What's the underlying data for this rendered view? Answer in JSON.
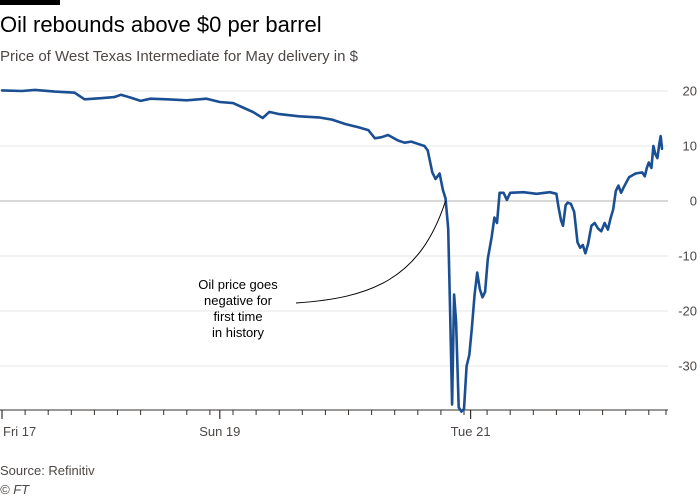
{
  "header": {
    "title": "Oil rebounds above $0 per barrel",
    "subtitle": "Price of West Texas Intermediate for May delivery in $"
  },
  "footer": {
    "source": "Source: Refinitiv",
    "credit": "© FT"
  },
  "colors": {
    "line": "#1b4f93",
    "grid": "#e6e4e2",
    "zero": "#b5b0ac",
    "axis": "#33302e"
  },
  "chart_data": {
    "type": "line",
    "title": "Oil rebounds above $0 per barrel",
    "subtitle": "Price of West Texas Intermediate for May delivery in $",
    "xlabel": "",
    "ylabel": "",
    "xlim": [
      0,
      100
    ],
    "ylim": [
      -38,
      22
    ],
    "y_ticks": [
      20,
      10,
      0,
      -10,
      -20,
      -30
    ],
    "y_tick_labels": [
      "20",
      "10",
      "0",
      "-10",
      "-20",
      "-30"
    ],
    "x_tick_labels": [
      {
        "label": "Fri 17",
        "x": 0
      },
      {
        "label": "Sun 19",
        "x": 33
      },
      {
        "label": "Tue 21",
        "x": 71
      }
    ],
    "x_minor_ticks": [
      3.5,
      7,
      10.5,
      14,
      17.5,
      21,
      24.5,
      28,
      31.5,
      35,
      38.5,
      42,
      45.5,
      49,
      52.5,
      56,
      59.5,
      63,
      66.5,
      70,
      73.5,
      77,
      80.5,
      84,
      87.5,
      91,
      94.5,
      98
    ],
    "series": [
      {
        "name": "WTI May delivery",
        "points": [
          [
            0,
            20.1
          ],
          [
            3,
            20.0
          ],
          [
            5,
            20.2
          ],
          [
            8,
            19.9
          ],
          [
            11,
            19.7
          ],
          [
            12.5,
            18.5
          ],
          [
            15,
            18.7
          ],
          [
            17,
            18.9
          ],
          [
            18,
            19.3
          ],
          [
            19.5,
            18.8
          ],
          [
            21,
            18.2
          ],
          [
            22.5,
            18.6
          ],
          [
            25,
            18.5
          ],
          [
            28,
            18.3
          ],
          [
            31,
            18.6
          ],
          [
            33,
            18.0
          ],
          [
            35,
            17.8
          ],
          [
            36.5,
            17.0
          ],
          [
            38,
            16.2
          ],
          [
            39.5,
            15.1
          ],
          [
            40.5,
            16.2
          ],
          [
            42,
            15.8
          ],
          [
            45,
            15.4
          ],
          [
            48,
            15.2
          ],
          [
            50,
            14.8
          ],
          [
            52,
            14.0
          ],
          [
            54,
            13.4
          ],
          [
            55.5,
            12.9
          ],
          [
            56.5,
            11.4
          ],
          [
            57.5,
            11.6
          ],
          [
            58.5,
            12.0
          ],
          [
            60,
            11.0
          ],
          [
            61,
            10.6
          ],
          [
            62,
            10.8
          ],
          [
            63,
            10.4
          ],
          [
            64,
            10.0
          ],
          [
            64.5,
            9.2
          ],
          [
            65.2,
            5.2
          ],
          [
            65.7,
            4.0
          ],
          [
            66.3,
            5.0
          ],
          [
            66.8,
            2.0
          ],
          [
            67.2,
            0.5
          ],
          [
            67.6,
            -5
          ],
          [
            67.9,
            -20
          ],
          [
            68.2,
            -37
          ],
          [
            68.5,
            -17
          ],
          [
            68.8,
            -22
          ],
          [
            69.2,
            -37.5
          ],
          [
            69.6,
            -38.3
          ],
          [
            70.0,
            -37.8
          ],
          [
            70.4,
            -30
          ],
          [
            70.8,
            -28
          ],
          [
            71.2,
            -23
          ],
          [
            71.6,
            -17
          ],
          [
            72.0,
            -13
          ],
          [
            72.4,
            -16
          ],
          [
            72.8,
            -17.5
          ],
          [
            73.2,
            -16.5
          ],
          [
            73.6,
            -10.5
          ],
          [
            74.2,
            -6.5
          ],
          [
            74.6,
            -3
          ],
          [
            75.0,
            -4
          ],
          [
            75.4,
            1.5
          ],
          [
            76.0,
            1.5
          ],
          [
            76.5,
            0.2
          ],
          [
            77.0,
            1.5
          ],
          [
            79.0,
            1.6
          ],
          [
            81.0,
            1.3
          ],
          [
            83.0,
            1.6
          ],
          [
            84.0,
            1.3
          ],
          [
            84.3,
            -1
          ],
          [
            84.7,
            -3.5
          ],
          [
            85.0,
            -4.5
          ],
          [
            85.4,
            -0.8
          ],
          [
            85.7,
            -0.3
          ],
          [
            86.2,
            -0.5
          ],
          [
            86.7,
            -2.0
          ],
          [
            87.2,
            -7.5
          ],
          [
            87.6,
            -8.5
          ],
          [
            88.0,
            -8.0
          ],
          [
            88.4,
            -9.5
          ],
          [
            88.8,
            -7.8
          ],
          [
            89.3,
            -4.5
          ],
          [
            89.8,
            -4.0
          ],
          [
            90.3,
            -5.0
          ],
          [
            90.8,
            -5.5
          ],
          [
            91.3,
            -4.0
          ],
          [
            91.8,
            -5.2
          ],
          [
            92.2,
            -3.2
          ],
          [
            92.6,
            -1.5
          ],
          [
            93.0,
            1.8
          ],
          [
            93.4,
            2.8
          ],
          [
            93.8,
            1.5
          ],
          [
            94.2,
            2.5
          ],
          [
            95.0,
            4.3
          ],
          [
            96.0,
            5.0
          ],
          [
            97.0,
            5.2
          ],
          [
            97.4,
            4.5
          ],
          [
            97.7,
            6.0
          ],
          [
            98.0,
            7.0
          ],
          [
            98.4,
            6.0
          ],
          [
            98.7,
            10.0
          ],
          [
            99.0,
            8.5
          ],
          [
            99.3,
            7.8
          ],
          [
            99.6,
            10.5
          ],
          [
            99.8,
            11.8
          ],
          [
            100,
            9.5
          ]
        ]
      }
    ],
    "annotations": [
      {
        "lines": [
          "Oil price goes",
          "negative for",
          "first time",
          "in history"
        ]
      }
    ]
  }
}
